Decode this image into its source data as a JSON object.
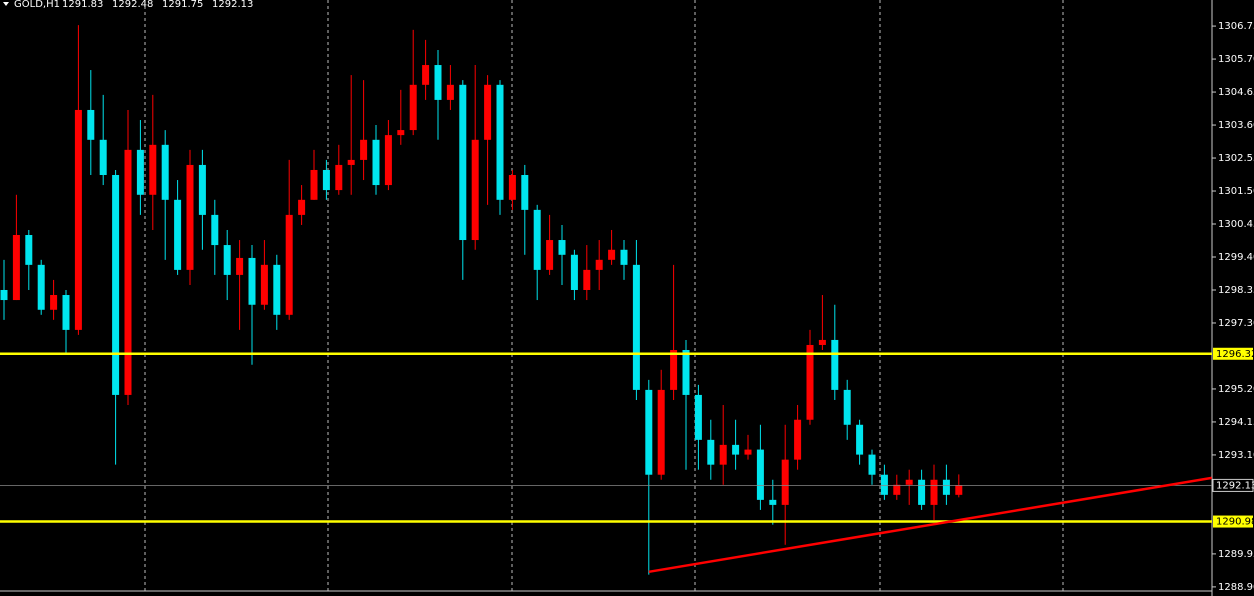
{
  "chart_data": {
    "type": "candlestick",
    "symbol": "GOLD,H1",
    "open": [
      1298.35,
      1298.03,
      1300.1,
      1299.15,
      1297.72,
      1298.19,
      1297.08,
      1304.08,
      1303.13,
      1302.01,
      1295.01,
      1302.81,
      1301.38,
      1302.97,
      1301.22,
      1298.99,
      1302.33,
      1300.74,
      1299.78,
      1298.83,
      1299.37,
      1297.88,
      1299.15,
      1297.56,
      1300.74,
      1301.22,
      1302.17,
      1301.53,
      1302.33,
      1302.49,
      1303.13,
      1301.69,
      1303.28,
      1303.44,
      1304.88,
      1305.51,
      1304.4,
      1304.88,
      1299.94,
      1303.13,
      1304.88,
      1301.22,
      1302.01,
      1300.9,
      1298.99,
      1299.94,
      1299.47,
      1298.35,
      1298.99,
      1299.31,
      1299.63,
      1299.15,
      1295.17,
      1292.47,
      1295.17,
      1296.44,
      1295.01,
      1293.58,
      1292.79,
      1293.42,
      1293.11,
      1293.27,
      1291.67,
      1291.51,
      1292.95,
      1294.22,
      1296.6,
      1296.76,
      1295.17,
      1294.06,
      1293.11,
      1292.47,
      1291.83,
      1292.15,
      1292.31,
      1291.51,
      1292.31,
      1291.83
    ],
    "high": [
      1299.31,
      1301.38,
      1300.26,
      1299.31,
      1298.67,
      1298.35,
      1306.78,
      1305.35,
      1304.56,
      1302.17,
      1304.08,
      1303.76,
      1304.56,
      1303.44,
      1301.85,
      1302.81,
      1302.81,
      1301.22,
      1300.26,
      1299.94,
      1299.78,
      1299.94,
      1299.47,
      1302.49,
      1301.69,
      1302.81,
      1302.49,
      1302.97,
      1305.19,
      1305.03,
      1303.6,
      1303.76,
      1304.72,
      1306.63,
      1306.31,
      1305.99,
      1305.51,
      1305.03,
      1305.51,
      1305.19,
      1305.03,
      1302.17,
      1302.33,
      1301.06,
      1300.74,
      1300.42,
      1299.63,
      1299.78,
      1299.94,
      1300.26,
      1299.94,
      1299.94,
      1295.49,
      1295.81,
      1299.15,
      1296.76,
      1295.33,
      1294.22,
      1294.69,
      1294.22,
      1293.74,
      1294.06,
      1292.31,
      1294.06,
      1294.69,
      1297.08,
      1298.19,
      1297.88,
      1295.49,
      1294.22,
      1293.27,
      1292.79,
      1292.47,
      1292.63,
      1292.63,
      1292.79,
      1292.79,
      1292.48
    ],
    "low": [
      1297.4,
      1298.03,
      1298.35,
      1297.56,
      1297.4,
      1296.28,
      1296.92,
      1302.01,
      1301.69,
      1292.79,
      1294.69,
      1300.74,
      1300.26,
      1299.31,
      1298.83,
      1298.51,
      1299.63,
      1298.83,
      1298.03,
      1297.08,
      1295.97,
      1297.72,
      1297.08,
      1297.4,
      1300.42,
      1301.22,
      1301.22,
      1301.38,
      1301.38,
      1301.85,
      1301.38,
      1301.53,
      1302.97,
      1303.28,
      1304.4,
      1303.13,
      1304.08,
      1298.67,
      1299.63,
      1301.06,
      1300.74,
      1300.9,
      1299.47,
      1298.03,
      1298.83,
      1298.51,
      1298.03,
      1298.03,
      1298.35,
      1299.15,
      1298.67,
      1294.85,
      1289.29,
      1292.31,
      1294.85,
      1292.63,
      1292.63,
      1292.31,
      1292.15,
      1292.63,
      1292.95,
      1291.35,
      1290.88,
      1290.24,
      1292.63,
      1294.06,
      1296.44,
      1294.85,
      1293.58,
      1292.79,
      1292.15,
      1291.67,
      1291.67,
      1291.51,
      1291.35,
      1291.03,
      1291.51,
      1291.75
    ],
    "close": [
      1298.03,
      1300.1,
      1299.15,
      1297.72,
      1298.19,
      1297.08,
      1304.08,
      1303.13,
      1302.01,
      1295.01,
      1302.81,
      1301.38,
      1302.97,
      1301.22,
      1298.99,
      1302.33,
      1300.74,
      1299.78,
      1298.83,
      1299.37,
      1297.88,
      1299.15,
      1297.56,
      1300.74,
      1301.22,
      1302.17,
      1301.53,
      1302.33,
      1302.49,
      1303.13,
      1301.69,
      1303.28,
      1303.44,
      1304.88,
      1305.51,
      1304.4,
      1304.88,
      1299.94,
      1303.13,
      1304.88,
      1301.22,
      1302.01,
      1300.9,
      1298.99,
      1299.94,
      1299.47,
      1298.35,
      1298.99,
      1299.31,
      1299.63,
      1299.15,
      1295.17,
      1292.47,
      1295.17,
      1296.44,
      1295.01,
      1293.58,
      1292.79,
      1293.42,
      1293.11,
      1293.27,
      1291.67,
      1291.51,
      1292.95,
      1294.22,
      1296.6,
      1296.76,
      1295.17,
      1294.06,
      1293.11,
      1292.47,
      1291.83,
      1292.15,
      1292.31,
      1291.51,
      1292.31,
      1291.83,
      1292.13
    ],
    "up_color": "#ff0000",
    "down_color": "#00e5ee",
    "ylim": [
      1288.61,
      1307.58
    ],
    "yticks": [
      1306.75,
      {
        "value": 1305.7,
        "label": "1305.70"
      },
      1304.65,
      {
        "value": 1303.6,
        "label": "1303.60"
      },
      1302.55,
      {
        "value": 1301.5,
        "label": "1301.50"
      },
      1300.45,
      {
        "value": 1299.4,
        "label": "1299.40"
      },
      1298.35,
      {
        "value": 1297.3,
        "label": "1297.30"
      },
      {
        "value": 1295.2,
        "label": "1295.20"
      },
      1294.15,
      {
        "value": 1293.1,
        "label": "1293.10"
      },
      1289.95,
      {
        "value": 1288.9,
        "label": "1288.90"
      }
    ],
    "levels": [
      {
        "value": 1296.32,
        "color": "#ffff00"
      },
      {
        "value": 1290.98,
        "color": "#ffff00"
      }
    ],
    "trendline": {
      "x": [
        52,
        97.4
      ],
      "y": [
        1289.38,
        1292.37
      ],
      "color": "#ff0000"
    },
    "grid": true
  }
}
